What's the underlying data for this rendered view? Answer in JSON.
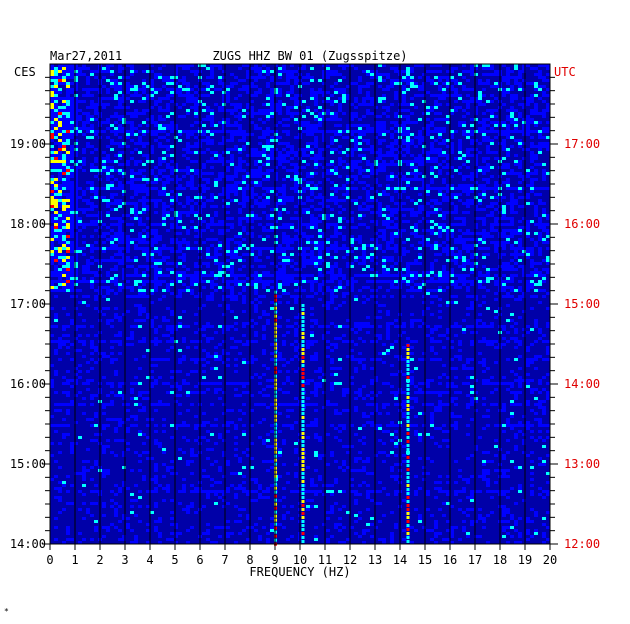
{
  "header": {
    "date": "Mar27,2011",
    "station": "ZUGS HHZ BW 01 (Zugsspitze)",
    "left_tz": "CES",
    "right_tz": "UTC"
  },
  "footer": {
    "corner_mark": "*"
  },
  "chart_data": {
    "type": "heatmap",
    "title": "ZUGS HHZ BW 01 (Zugsspitze)",
    "date": "Mar27,2011",
    "xlabel": "FREQUENCY (HZ)",
    "xlim": [
      0,
      20
    ],
    "x_ticks": [
      "0",
      "1",
      "2",
      "3",
      "4",
      "5",
      "6",
      "7",
      "8",
      "9",
      "10",
      "11",
      "12",
      "13",
      "14",
      "15",
      "16",
      "17",
      "18",
      "19",
      "20"
    ],
    "left_axis": {
      "label": "CES",
      "ticks": [
        "19:00",
        "18:00",
        "17:00",
        "16:00",
        "15:00",
        "14:00"
      ]
    },
    "right_axis": {
      "label": "UTC",
      "ticks": [
        "17:00",
        "16:00",
        "15:00",
        "14:00",
        "13:00",
        "12:00"
      ]
    },
    "time_range_utc": [
      "12:00",
      "17:50"
    ],
    "grid": true,
    "colors": {
      "background": "#0000a8",
      "low": "#0000ff",
      "mid": "#00ffff",
      "high_yellow": "#ffff00",
      "high_red": "#ff0000",
      "grid": "#000000",
      "right_axis": "#e00000"
    },
    "features": [
      {
        "type": "line",
        "x": 9.0,
        "from_utc": "12:00",
        "to_utc": "15:10"
      },
      {
        "type": "line",
        "x": 10.1,
        "from_utc": "12:00",
        "to_utc": "15:00"
      },
      {
        "type": "line",
        "x": 14.3,
        "from_utc": "12:00",
        "to_utc": "14:30"
      },
      {
        "type": "band",
        "x": [
          0,
          1
        ],
        "from_utc": "15:00",
        "to_utc": "17:50"
      }
    ]
  }
}
